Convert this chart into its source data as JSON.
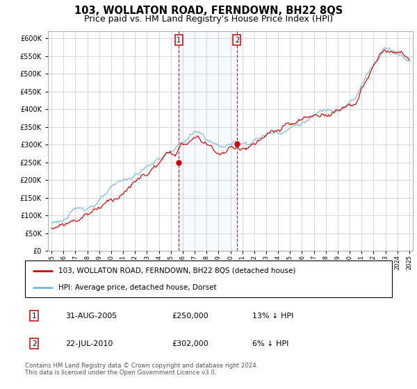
{
  "title": "103, WOLLATON ROAD, FERNDOWN, BH22 8QS",
  "subtitle": "Price paid vs. HM Land Registry's House Price Index (HPI)",
  "ylim": [
    0,
    620000
  ],
  "yticks": [
    0,
    50000,
    100000,
    150000,
    200000,
    250000,
    300000,
    350000,
    400000,
    450000,
    500000,
    550000,
    600000
  ],
  "sale1_date": 2005.66,
  "sale1_price": 250000,
  "sale2_date": 2010.55,
  "sale2_price": 302000,
  "hpi_color": "#7ab8d9",
  "price_color": "#cc0000",
  "chart_bg": "#ffffff",
  "grid_color": "#c8c8c8",
  "legend_line1": "103, WOLLATON ROAD, FERNDOWN, BH22 8QS (detached house)",
  "legend_line2": "HPI: Average price, detached house, Dorset",
  "table_row1": [
    "1",
    "31-AUG-2005",
    "£250,000",
    "13% ↓ HPI"
  ],
  "table_row2": [
    "2",
    "22-JUL-2010",
    "£302,000",
    "6% ↓ HPI"
  ],
  "footer": "Contains HM Land Registry data © Crown copyright and database right 2024.\nThis data is licensed under the Open Government Licence v3.0.",
  "xstart": 1995,
  "xend": 2025
}
